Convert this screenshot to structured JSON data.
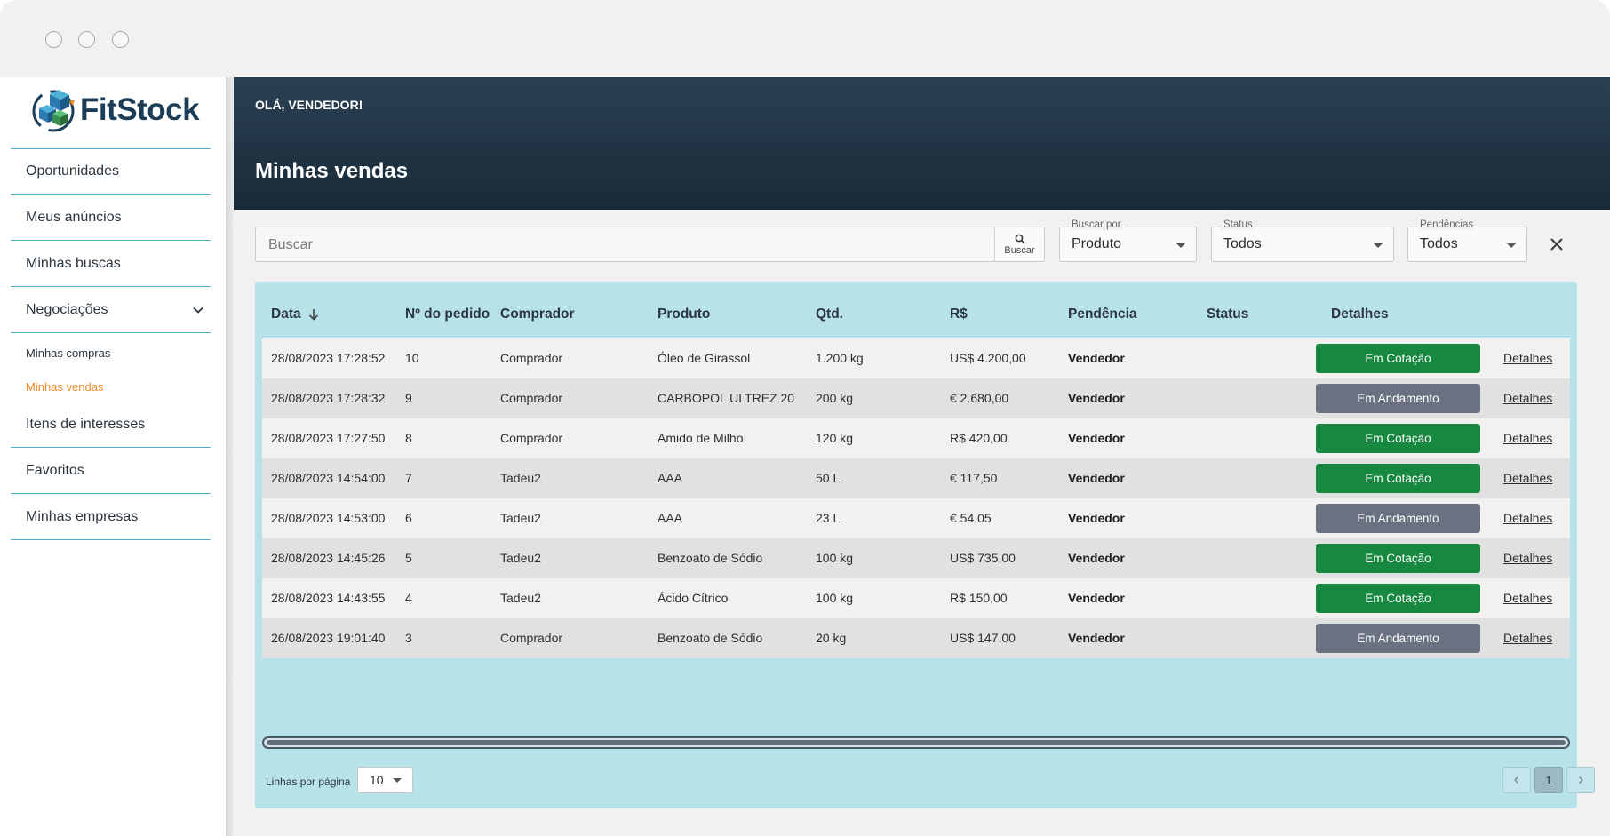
{
  "app": {
    "brand": "FitStock",
    "colors": {
      "accent": "#4fb0c0",
      "header_dark": "#172a38",
      "active_nav": "#f08a24",
      "badge_green": "#17883f",
      "badge_gray": "#6a7282",
      "table_bg": "#b8e2ea"
    }
  },
  "sidebar": {
    "items": [
      {
        "label": "Oportunidades"
      },
      {
        "label": "Meus anúncios"
      },
      {
        "label": "Minhas buscas"
      },
      {
        "label": "Negociações",
        "icon": "chevron-down-icon"
      },
      {
        "label": "Itens de interesses"
      },
      {
        "label": "Favoritos"
      },
      {
        "label": "Minhas empresas"
      }
    ],
    "subitems": [
      {
        "label": "Minhas compras"
      },
      {
        "label": "Minhas vendas",
        "active": true
      }
    ]
  },
  "header": {
    "greeting": "OLÁ, VENDEDOR!",
    "title": "Minhas vendas"
  },
  "filters": {
    "search": {
      "placeholder": "Buscar",
      "value": "",
      "button_label": "Buscar",
      "icon": "search-icon"
    },
    "search_by": {
      "legend": "Buscar por",
      "value": "Produto"
    },
    "status": {
      "legend": "Status",
      "value": "Todos"
    },
    "pendencias": {
      "legend": "Pendências",
      "value": "Todos"
    },
    "clear_icon": "close-icon"
  },
  "table": {
    "columns": [
      "Data",
      "Nº do pedido",
      "Comprador",
      "Produto",
      "Qtd.",
      "R$",
      "Pendência",
      "Status",
      "Detalhes"
    ],
    "sort": {
      "column": "Data",
      "direction": "desc",
      "icon": "arrow-down-icon"
    },
    "rows": [
      {
        "data": "28/08/2023 17:28:52",
        "pedido": "10",
        "comprador": "Comprador",
        "produto": "Óleo de Girassol",
        "qtd": "1.200 kg",
        "valor": "US$ 4.200,00",
        "pendencia": "Vendedor",
        "status": "Em Cotação",
        "detalhes": "Detalhes"
      },
      {
        "data": "28/08/2023 17:28:32",
        "pedido": "9",
        "comprador": "Comprador",
        "produto": "CARBOPOL ULTREZ 20",
        "qtd": "200 kg",
        "valor": "€ 2.680,00",
        "pendencia": "Vendedor",
        "status": "Em Andamento",
        "detalhes": "Detalhes"
      },
      {
        "data": "28/08/2023 17:27:50",
        "pedido": "8",
        "comprador": "Comprador",
        "produto": "Amido de Milho",
        "qtd": "120 kg",
        "valor": "R$ 420,00",
        "pendencia": "Vendedor",
        "status": "Em Cotação",
        "detalhes": "Detalhes"
      },
      {
        "data": "28/08/2023 14:54:00",
        "pedido": "7",
        "comprador": "Tadeu2",
        "produto": "AAA",
        "qtd": "50 L",
        "valor": "€ 117,50",
        "pendencia": "Vendedor",
        "status": "Em Cotação",
        "detalhes": "Detalhes"
      },
      {
        "data": "28/08/2023 14:53:00",
        "pedido": "6",
        "comprador": "Tadeu2",
        "produto": "AAA",
        "qtd": "23 L",
        "valor": "€ 54,05",
        "pendencia": "Vendedor",
        "status": "Em Andamento",
        "detalhes": "Detalhes"
      },
      {
        "data": "28/08/2023 14:45:26",
        "pedido": "5",
        "comprador": "Tadeu2",
        "produto": "Benzoato de Sódio",
        "qtd": "100 kg",
        "valor": "US$ 735,00",
        "pendencia": "Vendedor",
        "status": "Em Cotação",
        "detalhes": "Detalhes"
      },
      {
        "data": "28/08/2023 14:43:55",
        "pedido": "4",
        "comprador": "Tadeu2",
        "produto": "Ácido Cítrico",
        "qtd": "100 kg",
        "valor": "R$ 150,00",
        "pendencia": "Vendedor",
        "status": "Em Cotação",
        "detalhes": "Detalhes"
      },
      {
        "data": "26/08/2023 19:01:40",
        "pedido": "3",
        "comprador": "Comprador",
        "produto": "Benzoato de Sódio",
        "qtd": "20 kg",
        "valor": "US$ 147,00",
        "pendencia": "Vendedor",
        "status": "Em Andamento",
        "detalhes": "Detalhes"
      }
    ]
  },
  "pagination": {
    "rows_per_page_label": "Linhas por página",
    "rows_per_page": "10",
    "current_page": "1",
    "prev_icon": "chevron-left-icon",
    "next_icon": "chevron-right-icon"
  }
}
